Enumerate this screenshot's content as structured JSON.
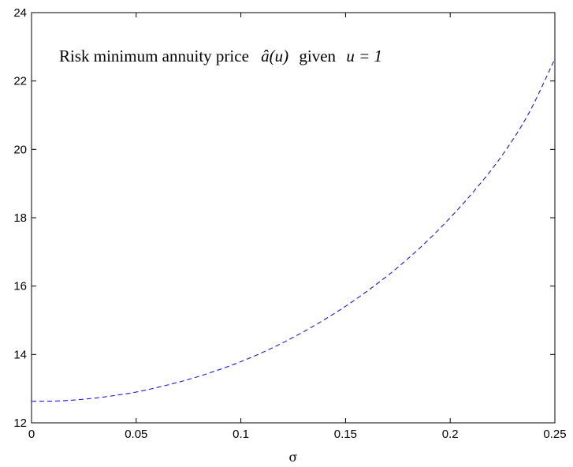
{
  "chart_data": {
    "type": "line",
    "title": "",
    "xlabel": "σ",
    "ylabel": "",
    "xlim": [
      0,
      0.25
    ],
    "ylim": [
      12,
      24
    ],
    "xticks": [
      0,
      0.05,
      0.1,
      0.15,
      0.2,
      0.25
    ],
    "xtick_labels": [
      "0",
      "0.05",
      "0.1",
      "0.15",
      "0.2",
      "0.25"
    ],
    "yticks": [
      12,
      14,
      16,
      18,
      20,
      22,
      24
    ],
    "ytick_labels": [
      "12",
      "14",
      "16",
      "18",
      "20",
      "22",
      "24"
    ],
    "grid": false,
    "legend": "none",
    "annotation": {
      "prefix": "Risk minimum annuity price",
      "math": "â(u)",
      "middle": "given",
      "condition": "u = 1"
    },
    "series": [
      {
        "color": "#0000ff",
        "line_style": "dashed",
        "x": [
          0,
          0.0125,
          0.025,
          0.0375,
          0.05,
          0.0625,
          0.075,
          0.0875,
          0.1,
          0.1125,
          0.125,
          0.1375,
          0.15,
          0.1625,
          0.175,
          0.1875,
          0.2,
          0.2125,
          0.225,
          0.2375,
          0.25
        ],
        "y": [
          12.63,
          12.64,
          12.69,
          12.78,
          12.9,
          13.07,
          13.27,
          13.51,
          13.79,
          14.12,
          14.5,
          14.93,
          15.41,
          15.95,
          16.55,
          17.23,
          18.0,
          18.86,
          19.84,
          21.05,
          22.65
        ]
      }
    ]
  }
}
